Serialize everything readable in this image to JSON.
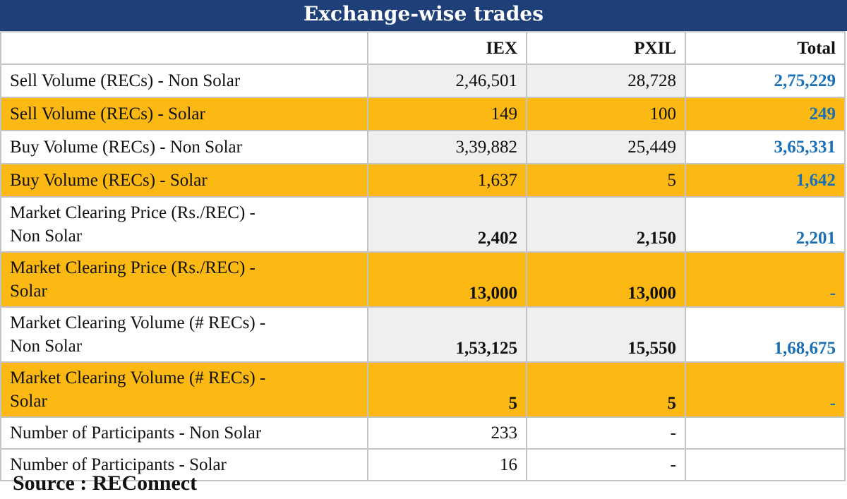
{
  "title": "Exchange-wise trades",
  "source": "Source : REConnect",
  "chart_data": {
    "type": "table",
    "title": "Exchange-wise trades",
    "columns": [
      "",
      "IEX",
      "PXIL",
      "Total"
    ],
    "rows": [
      {
        "label": "Sell Volume (RECs) - Non Solar",
        "iex": "2,46,501",
        "pxil": "28,728",
        "total": "2,75,229"
      },
      {
        "label": "Sell Volume (RECs) - Solar",
        "iex": "149",
        "pxil": "100",
        "total": "249"
      },
      {
        "label": "Buy Volume (RECs) - Non Solar",
        "iex": "3,39,882",
        "pxil": "25,449",
        "total": "3,65,331"
      },
      {
        "label": "Buy Volume (RECs) - Solar",
        "iex": "1,637",
        "pxil": "5",
        "total": "1,642"
      },
      {
        "label_line1": "Market Clearing Price (Rs./REC) -",
        "label_line2": "Non Solar",
        "iex": "2,402",
        "pxil": "2,150",
        "total": "2,201"
      },
      {
        "label_line1": "Market Clearing Price (Rs./REC) -",
        "label_line2": "Solar",
        "iex": "13,000",
        "pxil": "13,000",
        "total": "-"
      },
      {
        "label_line1": "Market Clearing Volume (# RECs) -",
        "label_line2": "Non Solar",
        "iex": "1,53,125",
        "pxil": "15,550",
        "total": "1,68,675"
      },
      {
        "label_line1": "Market Clearing Volume (# RECs) -",
        "label_line2": "Solar",
        "iex": "5",
        "pxil": "5",
        "total": "-"
      },
      {
        "label": "Number of Participants - Non Solar",
        "iex": "233",
        "pxil": "-",
        "total": ""
      },
      {
        "label": "Number of Participants - Solar",
        "iex": "16",
        "pxil": "-",
        "total": ""
      }
    ],
    "colors": {
      "header_band": "#1f3f78",
      "highlight_row": "#fdb913",
      "total_text": "#1a6fb5",
      "shaded_cell": "#efefef"
    }
  }
}
